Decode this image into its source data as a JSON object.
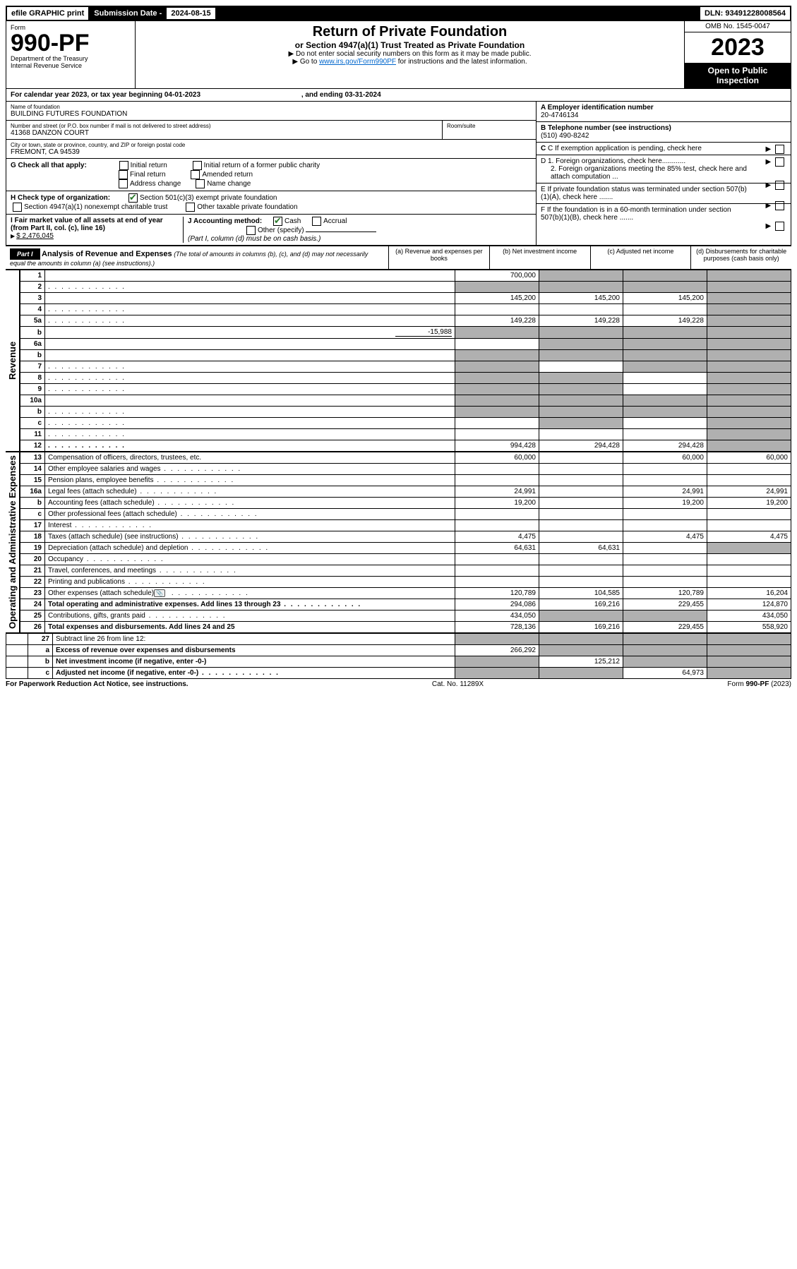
{
  "topbar": {
    "efile": "efile GRAPHIC print",
    "sub_label": "Submission Date - ",
    "sub_date": "2024-08-15",
    "dln_label": "DLN: ",
    "dln": "93491228008564"
  },
  "header": {
    "form_word": "Form",
    "form_no": "990-PF",
    "dept1": "Department of the Treasury",
    "dept2": "Internal Revenue Service",
    "title": "Return of Private Foundation",
    "subtitle": "or Section 4947(a)(1) Trust Treated as Private Foundation",
    "note1": "▶ Do not enter social security numbers on this form as it may be made public.",
    "note2_pre": "▶ Go to ",
    "note2_link": "www.irs.gov/Form990PF",
    "note2_post": " for instructions and the latest information.",
    "omb": "OMB No. 1545-0047",
    "year": "2023",
    "open": "Open to Public Inspection"
  },
  "calyear": {
    "text": "For calendar year 2023, or tax year beginning 04-01-2023",
    "end": ", and ending 03-31-2024"
  },
  "entity": {
    "name_label": "Name of foundation",
    "name": "BUILDING FUTURES FOUNDATION",
    "addr_label": "Number and street (or P.O. box number if mail is not delivered to street address)",
    "addr": "41368 DANZON COURT",
    "room_label": "Room/suite",
    "city_label": "City or town, state or province, country, and ZIP or foreign postal code",
    "city": "FREMONT, CA  94539"
  },
  "right": {
    "a_label": "A Employer identification number",
    "ein": "20-4746134",
    "b_label": "B Telephone number (see instructions)",
    "phone": "(510) 490-8242",
    "c_label": "C If exemption application is pending, check here",
    "d1": "D 1. Foreign organizations, check here............",
    "d2": "2. Foreign organizations meeting the 85% test, check here and attach computation ...",
    "e": "E  If private foundation status was terminated under section 507(b)(1)(A), check here .......",
    "f": "F  If the foundation is in a 60-month termination under section 507(b)(1)(B), check here .......",
    "g_label": "G Check all that apply:",
    "g_opts": [
      "Initial return",
      "Initial return of a former public charity",
      "Final return",
      "Amended return",
      "Address change",
      "Name change"
    ],
    "h_label": "H Check type of organization:",
    "h1": "Section 501(c)(3) exempt private foundation",
    "h2": "Section 4947(a)(1) nonexempt charitable trust",
    "h3": "Other taxable private foundation",
    "i_label": "I Fair market value of all assets at end of year (from Part II, col. (c), line 16)",
    "i_val": "$  2,476,045",
    "j_label": "J Accounting method:",
    "j_cash": "Cash",
    "j_accr": "Accrual",
    "j_other": "Other (specify)",
    "j_note": "(Part I, column (d) must be on cash basis.)"
  },
  "part1": {
    "label": "Part I",
    "title": "Analysis of Revenue and Expenses",
    "note": "(The total of amounts in columns (b), (c), and (d) may not necessarily equal the amounts in column (a) (see instructions).)",
    "cols": {
      "a": "(a) Revenue and expenses per books",
      "b": "(b) Net investment income",
      "c": "(c) Adjusted net income",
      "d": "(d) Disbursements for charitable purposes (cash basis only)"
    }
  },
  "sections": {
    "revenue": "Revenue",
    "opex": "Operating and Administrative Expenses"
  },
  "rows": [
    {
      "n": "1",
      "d": "",
      "a": "700,000",
      "b": "",
      "c": "",
      "shade_b": true,
      "shade_c": true,
      "shade_d": true
    },
    {
      "n": "2",
      "d": "",
      "a": "",
      "b": "",
      "c": "",
      "shade_a": true,
      "shade_b": true,
      "shade_c": true,
      "shade_d": true,
      "dots": true
    },
    {
      "n": "3",
      "d": "",
      "a": "145,200",
      "b": "145,200",
      "c": "145,200",
      "shade_d": true
    },
    {
      "n": "4",
      "d": "",
      "a": "",
      "b": "",
      "c": "",
      "dots": true,
      "shade_d": true
    },
    {
      "n": "5a",
      "d": "",
      "a": "149,228",
      "b": "149,228",
      "c": "149,228",
      "dots": true,
      "shade_d": true
    },
    {
      "n": "b",
      "d": "",
      "inline": "-15,988",
      "a": "",
      "b": "",
      "c": "",
      "shade_a": true,
      "shade_b": true,
      "shade_c": true,
      "shade_d": true
    },
    {
      "n": "6a",
      "d": "",
      "a": "",
      "b": "",
      "c": "",
      "shade_b": true,
      "shade_c": true,
      "shade_d": true
    },
    {
      "n": "b",
      "d": "",
      "a": "",
      "b": "",
      "c": "",
      "shade_a": true,
      "shade_b": true,
      "shade_c": true,
      "shade_d": true,
      "underline": true
    },
    {
      "n": "7",
      "d": "",
      "a": "",
      "b": "",
      "c": "",
      "dots": true,
      "shade_a": true,
      "shade_c": true,
      "shade_d": true
    },
    {
      "n": "8",
      "d": "",
      "a": "",
      "b": "",
      "c": "",
      "dots": true,
      "shade_a": true,
      "shade_b": true,
      "shade_d": true
    },
    {
      "n": "9",
      "d": "",
      "a": "",
      "b": "",
      "c": "",
      "dots": true,
      "shade_a": true,
      "shade_b": true,
      "shade_d": true
    },
    {
      "n": "10a",
      "d": "",
      "a": "",
      "b": "",
      "c": "",
      "shade_a": true,
      "shade_b": true,
      "shade_c": true,
      "shade_d": true,
      "box": true
    },
    {
      "n": "b",
      "d": "",
      "a": "",
      "b": "",
      "c": "",
      "dots": true,
      "shade_a": true,
      "shade_b": true,
      "shade_c": true,
      "shade_d": true,
      "box": true
    },
    {
      "n": "c",
      "d": "",
      "a": "",
      "b": "",
      "c": "",
      "dots": true,
      "shade_b": true,
      "shade_d": true
    },
    {
      "n": "11",
      "d": "",
      "a": "",
      "b": "",
      "c": "",
      "dots": true,
      "shade_d": true
    },
    {
      "n": "12",
      "d": "",
      "a": "994,428",
      "b": "294,428",
      "c": "294,428",
      "dots": true,
      "bold": true,
      "shade_d": true
    }
  ],
  "rows2": [
    {
      "n": "13",
      "d": "Compensation of officers, directors, trustees, etc.",
      "a": "60,000",
      "b": "",
      "c": "60,000",
      "dd": "60,000"
    },
    {
      "n": "14",
      "d": "Other employee salaries and wages",
      "a": "",
      "b": "",
      "c": "",
      "dd": "",
      "dots": true
    },
    {
      "n": "15",
      "d": "Pension plans, employee benefits",
      "a": "",
      "b": "",
      "c": "",
      "dd": "",
      "dots": true
    },
    {
      "n": "16a",
      "d": "Legal fees (attach schedule)",
      "a": "24,991",
      "b": "",
      "c": "24,991",
      "dd": "24,991",
      "dots": true
    },
    {
      "n": "b",
      "d": "Accounting fees (attach schedule)",
      "a": "19,200",
      "b": "",
      "c": "19,200",
      "dd": "19,200",
      "dots": true
    },
    {
      "n": "c",
      "d": "Other professional fees (attach schedule)",
      "a": "",
      "b": "",
      "c": "",
      "dd": "",
      "dots": true
    },
    {
      "n": "17",
      "d": "Interest",
      "a": "",
      "b": "",
      "c": "",
      "dd": "",
      "dots": true
    },
    {
      "n": "18",
      "d": "Taxes (attach schedule) (see instructions)",
      "a": "4,475",
      "b": "",
      "c": "4,475",
      "dd": "4,475",
      "dots": true
    },
    {
      "n": "19",
      "d": "Depreciation (attach schedule) and depletion",
      "a": "64,631",
      "b": "64,631",
      "c": "",
      "dd": "",
      "dots": true,
      "shade_d": true
    },
    {
      "n": "20",
      "d": "Occupancy",
      "a": "",
      "b": "",
      "c": "",
      "dd": "",
      "dots": true
    },
    {
      "n": "21",
      "d": "Travel, conferences, and meetings",
      "a": "",
      "b": "",
      "c": "",
      "dd": "",
      "dots": true
    },
    {
      "n": "22",
      "d": "Printing and publications",
      "a": "",
      "b": "",
      "c": "",
      "dd": "",
      "dots": true
    },
    {
      "n": "23",
      "d": "Other expenses (attach schedule)",
      "a": "120,789",
      "b": "104,585",
      "c": "120,789",
      "dd": "16,204",
      "dots": true,
      "icon": true
    },
    {
      "n": "24",
      "d": "Total operating and administrative expenses. Add lines 13 through 23",
      "a": "294,086",
      "b": "169,216",
      "c": "229,455",
      "dd": "124,870",
      "dots": true,
      "bold": true
    },
    {
      "n": "25",
      "d": "Contributions, gifts, grants paid",
      "a": "434,050",
      "b": "",
      "c": "",
      "dd": "434,050",
      "dots": true,
      "shade_b": true,
      "shade_c": true
    },
    {
      "n": "26",
      "d": "Total expenses and disbursements. Add lines 24 and 25",
      "a": "728,136",
      "b": "169,216",
      "c": "229,455",
      "dd": "558,920",
      "bold": true
    }
  ],
  "rows3": [
    {
      "n": "27",
      "d": "Subtract line 26 from line 12:",
      "a": "",
      "b": "",
      "c": "",
      "dd": "",
      "shade_a": true,
      "shade_b": true,
      "shade_c": true,
      "shade_d": true
    },
    {
      "n": "a",
      "d": "Excess of revenue over expenses and disbursements",
      "a": "266,292",
      "b": "",
      "c": "",
      "dd": "",
      "bold": true,
      "shade_b": true,
      "shade_c": true,
      "shade_d": true
    },
    {
      "n": "b",
      "d": "Net investment income (if negative, enter -0-)",
      "a": "",
      "b": "125,212",
      "c": "",
      "dd": "",
      "bold": true,
      "shade_a": true,
      "shade_c": true,
      "shade_d": true
    },
    {
      "n": "c",
      "d": "Adjusted net income (if negative, enter -0-)",
      "a": "",
      "b": "",
      "c": "64,973",
      "dd": "",
      "bold": true,
      "dots": true,
      "shade_a": true,
      "shade_b": true,
      "shade_d": true
    }
  ],
  "footer": {
    "left": "For Paperwork Reduction Act Notice, see instructions.",
    "mid": "Cat. No. 11289X",
    "right": "Form 990-PF (2023)"
  },
  "colors": {
    "link": "#0066cc",
    "shade": "#b0b0b0",
    "check": "#2a7a2a"
  }
}
